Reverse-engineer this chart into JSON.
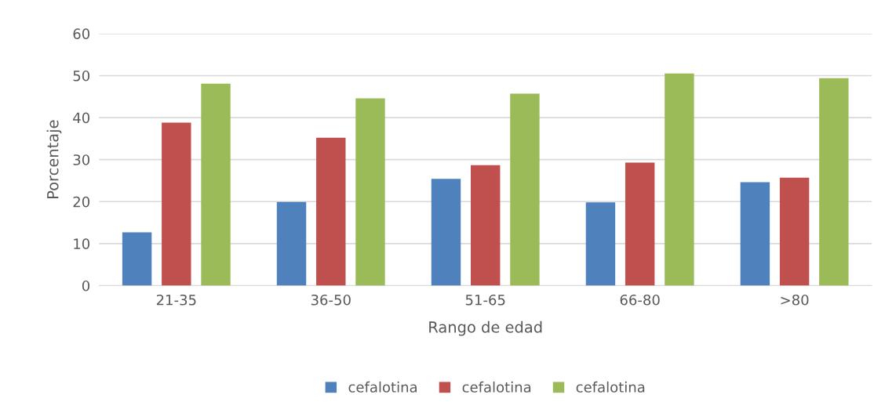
{
  "chart_data": {
    "type": "bar",
    "xlabel": "Rango de edad",
    "ylabel": "Porcentaje",
    "categories": [
      "21-35",
      "36-50",
      "51-65",
      "66-80",
      ">80"
    ],
    "series": [
      {
        "name": "cefalotina",
        "color": "#4f81bd",
        "values": [
          12.7,
          19.9,
          25.4,
          19.8,
          24.6
        ]
      },
      {
        "name": "cefalotina",
        "color": "#c0504d",
        "values": [
          38.8,
          35.2,
          28.7,
          29.3,
          25.7
        ]
      },
      {
        "name": "cefalotina",
        "color": "#9bbb59",
        "values": [
          48.1,
          44.6,
          45.7,
          50.5,
          49.4
        ]
      }
    ],
    "ylim": [
      0,
      60
    ],
    "yticks": [
      0,
      10,
      20,
      30,
      40,
      50,
      60
    ],
    "grid": "y",
    "legend": "bottom"
  }
}
